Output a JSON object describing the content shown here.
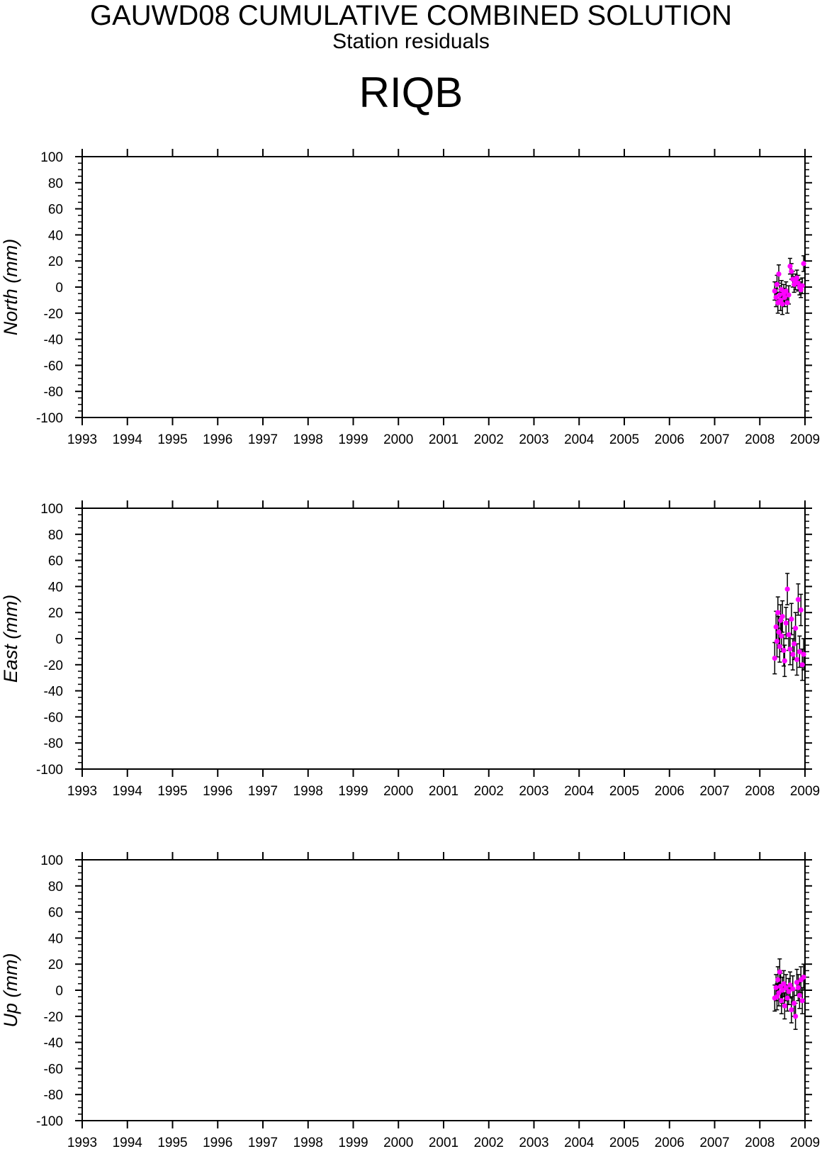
{
  "header": {
    "title": "GAUWD08 CUMULATIVE COMBINED SOLUTION",
    "subtitle": "Station residuals",
    "station": "RIQB"
  },
  "colors": {
    "points": "#ff00ff",
    "error_bars": "#000000",
    "axes": "#000000"
  },
  "chart_data": [
    {
      "type": "scatter",
      "ylabel": "North (mm)",
      "xlim": [
        1993,
        2009
      ],
      "ylim": [
        -100,
        100
      ],
      "x_ticks": [
        "1993",
        "1994",
        "1995",
        "1996",
        "1997",
        "1998",
        "1999",
        "2000",
        "2001",
        "2002",
        "2003",
        "2004",
        "2005",
        "2006",
        "2007",
        "2008",
        "2009"
      ],
      "y_ticks": [
        "100",
        "80",
        "60",
        "40",
        "20",
        "0",
        "-20",
        "-40",
        "-60",
        "-80",
        "-100"
      ],
      "grid": false,
      "series": [
        {
          "x": [
            2008.33,
            2008.36,
            2008.38,
            2008.4,
            2008.42,
            2008.44,
            2008.46,
            2008.48,
            2008.5,
            2008.53,
            2008.55,
            2008.58,
            2008.61,
            2008.64,
            2008.67,
            2008.7,
            2008.73,
            2008.76,
            2008.79,
            2008.82,
            2008.85,
            2008.88,
            2008.91,
            2008.94,
            2008.97
          ],
          "y": [
            -3,
            -8,
            2,
            -12,
            10,
            -6,
            -10,
            -2,
            -13,
            -5,
            -8,
            -3,
            -12,
            -6,
            16,
            12,
            6,
            2,
            4,
            7,
            3,
            0,
            -2,
            1,
            18
          ],
          "err": [
            7,
            7,
            7,
            8,
            7,
            7,
            8,
            7,
            8,
            7,
            7,
            7,
            8,
            7,
            6,
            6,
            6,
            6,
            6,
            6,
            6,
            6,
            6,
            6,
            6
          ]
        }
      ]
    },
    {
      "type": "scatter",
      "ylabel": "East (mm)",
      "xlim": [
        1993,
        2009
      ],
      "ylim": [
        -100,
        100
      ],
      "x_ticks": [
        "1993",
        "1994",
        "1995",
        "1996",
        "1997",
        "1998",
        "1999",
        "2000",
        "2001",
        "2002",
        "2003",
        "2004",
        "2005",
        "2006",
        "2007",
        "2008",
        "2009"
      ],
      "y_ticks": [
        "100",
        "80",
        "60",
        "40",
        "20",
        "0",
        "-20",
        "-40",
        "-60",
        "-80",
        "-100"
      ],
      "grid": false,
      "series": [
        {
          "x": [
            2008.33,
            2008.36,
            2008.38,
            2008.4,
            2008.42,
            2008.44,
            2008.46,
            2008.48,
            2008.5,
            2008.53,
            2008.55,
            2008.58,
            2008.61,
            2008.64,
            2008.67,
            2008.7,
            2008.73,
            2008.76,
            2008.79,
            2008.82,
            2008.85,
            2008.88,
            2008.91,
            2008.94,
            2008.97
          ],
          "y": [
            -15,
            9,
            -2,
            20,
            5,
            -6,
            14,
            2,
            17,
            -9,
            -17,
            12,
            38,
            3,
            -8,
            15,
            -12,
            -4,
            8,
            -16,
            30,
            -10,
            22,
            -20,
            -12
          ],
          "err": [
            12,
            12,
            12,
            12,
            12,
            12,
            12,
            12,
            12,
            12,
            12,
            12,
            12,
            12,
            12,
            12,
            12,
            12,
            12,
            12,
            12,
            12,
            12,
            12,
            12
          ]
        }
      ]
    },
    {
      "type": "scatter",
      "ylabel": "Up (mm)",
      "xlim": [
        1993,
        2009
      ],
      "ylim": [
        -100,
        100
      ],
      "x_ticks": [
        "1993",
        "1994",
        "1995",
        "1996",
        "1997",
        "1998",
        "1999",
        "2000",
        "2001",
        "2002",
        "2003",
        "2004",
        "2005",
        "2006",
        "2007",
        "2008",
        "2009"
      ],
      "y_ticks": [
        "100",
        "80",
        "60",
        "40",
        "20",
        "0",
        "-20",
        "-40",
        "-60",
        "-80",
        "-100"
      ],
      "grid": false,
      "series": [
        {
          "x": [
            2008.33,
            2008.36,
            2008.38,
            2008.4,
            2008.42,
            2008.44,
            2008.46,
            2008.48,
            2008.5,
            2008.53,
            2008.55,
            2008.58,
            2008.61,
            2008.64,
            2008.67,
            2008.7,
            2008.73,
            2008.76,
            2008.79,
            2008.82,
            2008.85,
            2008.88,
            2008.91,
            2008.94,
            2008.97
          ],
          "y": [
            -6,
            2,
            -5,
            8,
            -2,
            14,
            3,
            -8,
            0,
            5,
            -12,
            2,
            -6,
            -1,
            4,
            -15,
            1,
            -10,
            -20,
            6,
            2,
            -4,
            8,
            -8,
            10
          ],
          "err": [
            10,
            10,
            10,
            10,
            10,
            10,
            10,
            10,
            10,
            10,
            10,
            10,
            10,
            10,
            10,
            10,
            10,
            10,
            10,
            10,
            10,
            10,
            10,
            10,
            10
          ]
        }
      ]
    }
  ]
}
